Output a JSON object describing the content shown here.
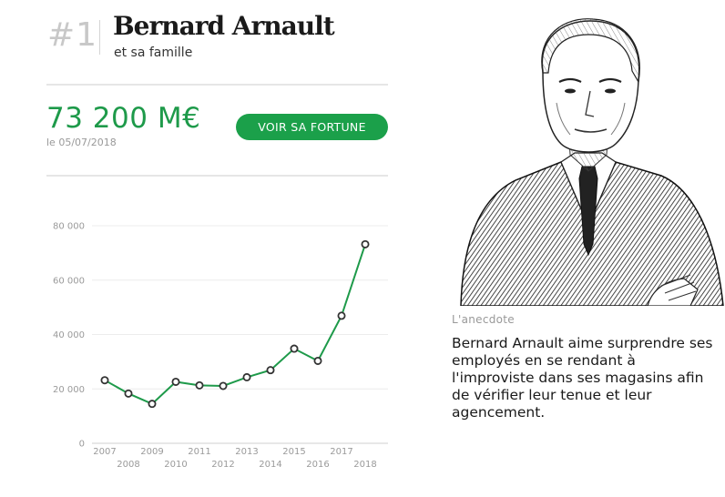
{
  "header": {
    "rank": "#1",
    "name": "Bernard Arnault",
    "subtitle": "et sa famille"
  },
  "fortune": {
    "value": "73 200 M€",
    "date": "le 05/07/2018",
    "button_label": "VOIR SA FORTUNE"
  },
  "anecdote": {
    "label": "L'anecdote",
    "text": "Bernard Arnault aime surprendre ses employés en se rendant à l'improviste dans ses magasins afin de vérifier leur tenue et leur agencement."
  },
  "colors": {
    "accent": "#1ba04a",
    "line": "#1e9a4a",
    "point_fill": "#ffffff",
    "point_stroke": "#333333",
    "grid": "#ececec"
  },
  "chart_data": {
    "type": "line",
    "title": "",
    "xlabel": "",
    "ylabel": "",
    "x": [
      2007,
      2008,
      2009,
      2010,
      2011,
      2012,
      2013,
      2014,
      2015,
      2016,
      2017,
      2018
    ],
    "series": [
      {
        "values": [
          23200,
          18300,
          14500,
          22600,
          21300,
          21100,
          24300,
          26900,
          34800,
          30300,
          46900,
          73200
        ]
      }
    ],
    "ylim": [
      0,
      80000
    ],
    "yticks": [
      0,
      20000,
      40000,
      60000,
      80000
    ],
    "ytick_labels": [
      "0",
      "20 000",
      "40 000",
      "60 000",
      "80 000"
    ],
    "xtick_labels_top": [
      "2007",
      "2009",
      "2011",
      "2013",
      "2015",
      "2017"
    ],
    "xtick_labels_bottom": [
      "2008",
      "2010",
      "2012",
      "2014",
      "2016",
      "2018"
    ],
    "grid": true,
    "legend": "none"
  }
}
